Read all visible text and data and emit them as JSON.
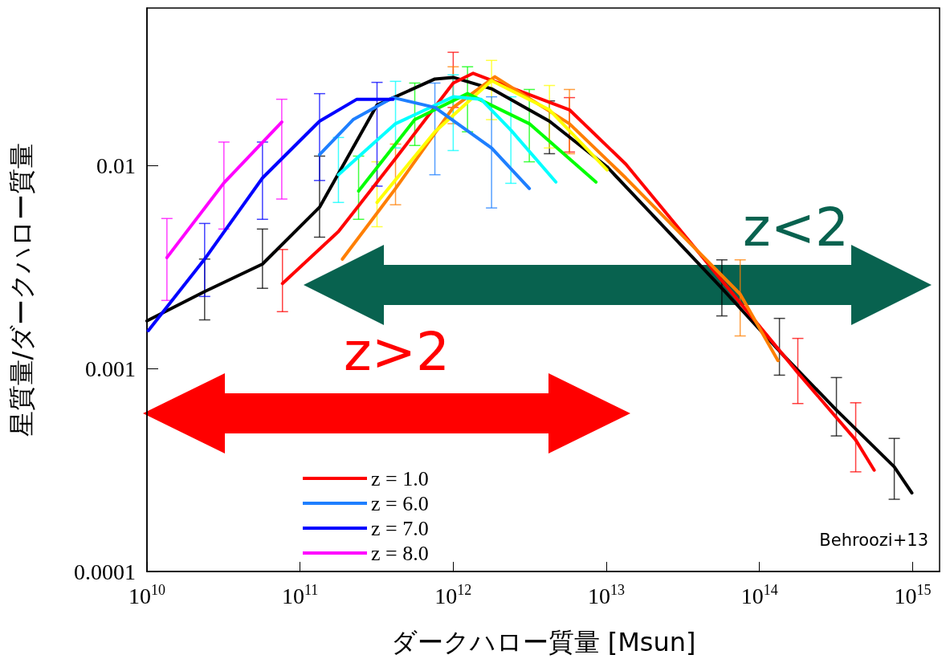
{
  "chart_data": {
    "type": "line",
    "xlabel": "ダークハロー質量 [Msun]",
    "ylabel": "星質量/ダークハロー質量",
    "log": "xy",
    "xlim": [
      10000000000.0,
      1500000000000000.0
    ],
    "ylim": [
      0.0001,
      0.06
    ],
    "xticks": [
      {
        "value": 10000000000.0,
        "label": "10$^{10}$"
      },
      {
        "value": 100000000000.0,
        "label": "10$^{11}$"
      },
      {
        "value": 1000000000000.0,
        "label": "10$^{12}$"
      },
      {
        "value": 10000000000000.0,
        "label": "10$^{13}$"
      },
      {
        "value": 100000000000000.0,
        "label": "10$^{14}$"
      },
      {
        "value": 1000000000000000.0,
        "label": "10$^{15}$"
      }
    ],
    "yticks": [
      0.0001,
      0.001,
      0.01
    ],
    "grid": false,
    "legend": "bottom left",
    "marker": "none",
    "line_style": "solid",
    "annotations": [
      "z<2",
      "z>2",
      "Behroozi+13"
    ],
    "series": [
      {
        "color": "#000000",
        "x": [
          10000000000.0,
          23800000000.0,
          56800000000.0,
          134000000000.0,
          318000000000.0,
          759000000000.0,
          1000000000000.0,
          1780000000000.0,
          4250000000000.0,
          10100000000000.0,
          56800000000000.0,
          135000000000000.0,
          318000000000000.0,
          759000000000000.0,
          989000000000000.0
        ],
        "values": [
          0.00172,
          0.0024,
          0.00328,
          0.00625,
          0.01995,
          0.0268,
          0.0273,
          0.024,
          0.0166,
          0.0099,
          0.00249,
          0.00122,
          0.000625,
          0.000328,
          0.000244
        ],
        "errors": [
          null,
          [
            0.00174,
            0.00347
          ],
          [
            0.00249,
            0.00488
          ],
          [
            0.00445,
            0.01117
          ],
          null,
          null,
          null,
          null,
          [
            0.01148,
            0.0209
          ],
          null,
          [
            0.00182,
            0.00344
          ],
          [
            0.000929,
            0.00177
          ],
          [
            0.000466,
            0.000904
          ],
          [
            0.000227,
            0.000453
          ],
          null
        ]
      },
      {
        "name": "z = 1.0",
        "color": "#ff0000",
        "x": [
          76700000000.0,
          178000000000.0,
          420000000000.0,
          1000000000000.0,
          1350000000000.0,
          5740000000000.0,
          13400000000000.0,
          178000000000000.0,
          425000000000000.0,
          561000000000000.0
        ],
        "values": [
          0.00263,
          0.00474,
          0.01086,
          0.0256,
          0.0286,
          0.0189,
          0.0102,
          0.000955,
          0.000445,
          0.000316
        ],
        "errors": [
          [
            0.00191,
            0.00387
          ],
          null,
          null,
          [
            0.0194,
            0.0363
          ],
          null,
          [
            0.0117,
            0.0217
          ],
          null,
          [
            0.000673,
            0.00141
          ],
          [
            0.00031,
            0.000679
          ],
          null
        ]
      },
      {
        "color": "#ff7f00",
        "x": [
          189000000000.0,
          420000000000.0,
          1000000000000.0,
          1870000000000.0,
          5740000000000.0,
          13400000000000.0,
          74800000000000.0,
          132000000000000.0
        ],
        "values": [
          0.00347,
          0.00773,
          0.0194,
          0.0275,
          0.01614,
          0.00871,
          0.00233,
          0.001096
        ],
        "errors": [
          null,
          [
            0.00643,
            0.0128
          ],
          [
            0.01614,
            0.0308
          ],
          null,
          [
            0.01148,
            0.0238
          ],
          null,
          [
            0.00145,
            0.00344
          ],
          null
        ]
      },
      {
        "color": "#ffff00",
        "x": [
          318000000000.0,
          759000000000.0,
          1780000000000.0,
          4250000000000.0,
          10100000000000.0
        ],
        "values": [
          0.0066,
          0.01472,
          0.0263,
          0.0189,
          0.00955
        ],
        "errors": [
          [
            0.00501,
            0.01047
          ],
          null,
          [
            0.0169,
            0.0331
          ],
          [
            0.01225,
            0.0249
          ],
          null
        ]
      },
      {
        "color": "#00ff00",
        "x": [
          241000000000.0,
          561000000000.0,
          1240000000000.0,
          3140000000000.0,
          8550000000000.0
        ],
        "values": [
          0.00752,
          0.0169,
          0.0227,
          0.01614,
          0.00832
        ],
        "errors": [
          [
            0.00545,
            0.01117
          ],
          [
            0.0126,
            0.0256
          ],
          [
            0.01472,
            0.0308
          ],
          [
            0.01047,
            0.0238
          ],
          null
        ]
      },
      {
        "color": "#00ffff",
        "x": [
          178000000000.0,
          420000000000.0,
          1000000000000.0,
          1520000000000.0,
          2380000000000.0,
          4680000000000.0
        ],
        "values": [
          0.00904,
          0.01614,
          0.0219,
          0.0213,
          0.015,
          0.00832
        ],
        "errors": [
          [
            0.0066,
            0.0138
          ],
          [
            0.01225,
            0.0261
          ],
          [
            0.0119,
            0.0281
          ],
          null,
          [
            0.0082,
            0.0219
          ],
          null
        ]
      },
      {
        "name": "z = 6.0",
        "color": "#1e7fff",
        "x": [
          134000000000.0,
          222000000000.0,
          405000000000.0,
          759000000000.0,
          1780000000000.0,
          3140000000000.0
        ],
        "values": [
          0.01137,
          0.0169,
          0.0217,
          0.0194,
          0.01225,
          0.00773
        ],
        "errors": [
          null,
          null,
          null,
          [
            0.00904,
            0.0256
          ],
          [
            0.0062,
            0.0219
          ],
          null
        ]
      },
      {
        "name": "z = 7.0",
        "color": "#0000ff",
        "x": [
          10200000000.0,
          23800000000.0,
          56800000000.0,
          134000000000.0,
          235000000000.0,
          318000000000.0,
          405000000000.0
        ],
        "values": [
          0.00154,
          0.00347,
          0.00871,
          0.0166,
          0.0213,
          0.0213,
          0.0213
        ],
        "errors": [
          null,
          [
            0.00227,
            0.0052
          ],
          [
            0.00545,
            0.0131
          ],
          [
            0.00847,
            0.0227
          ],
          null,
          [
            0.00794,
            0.0258
          ],
          null
        ]
      },
      {
        "name": "z = 8.0",
        "color": "#ff00ff",
        "x": [
          13500000000.0,
          31800000000.0,
          75900000000.0
        ],
        "values": [
          0.00353,
          0.00824,
          0.01644
        ],
        "errors": [
          [
            0.00217,
            0.0055
          ],
          [
            0.00488,
            0.0131
          ],
          [
            0.00686,
            0.0213
          ]
        ]
      }
    ]
  }
}
